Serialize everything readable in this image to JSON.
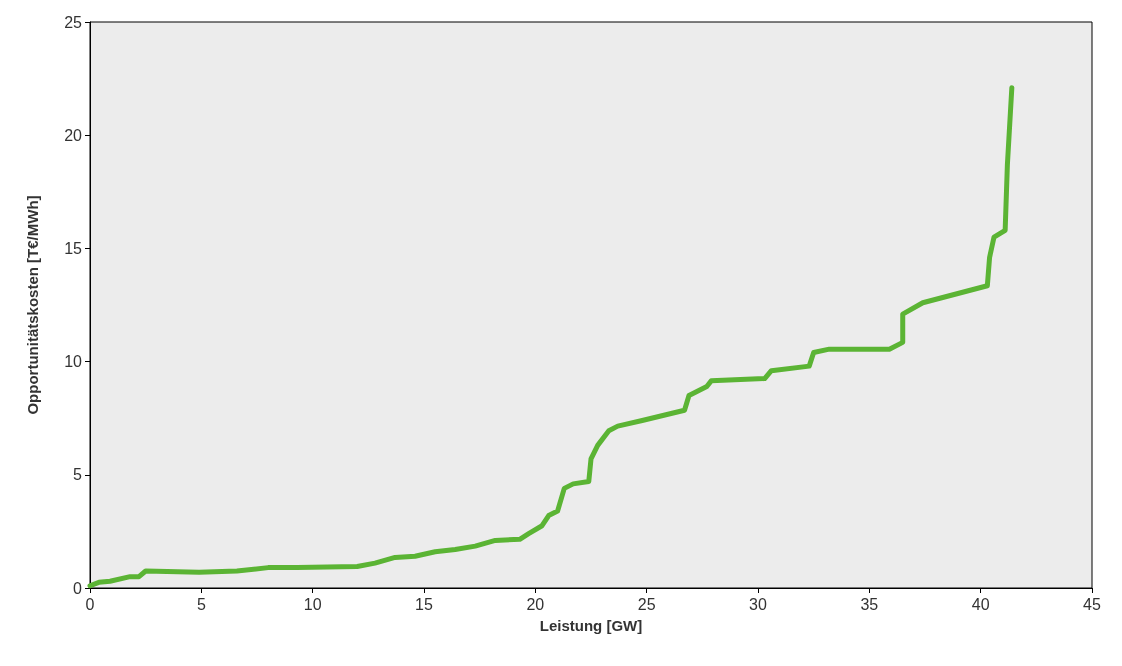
{
  "chart_data": {
    "type": "line",
    "xlabel": "Leistung [GW]",
    "ylabel": "Opportunitätskosten [T€/MWh]",
    "xlim": [
      0,
      45
    ],
    "xticks": [
      0,
      5,
      10,
      15,
      20,
      25,
      30,
      35,
      40,
      45
    ],
    "ylim": [
      0,
      25
    ],
    "yticks": [
      0,
      5,
      10,
      15,
      20,
      25
    ],
    "grid": false,
    "marker": "none",
    "line_style": "solid",
    "series": [
      {
        "color": "#5bb434",
        "x": [
          0,
          0.4,
          0.9,
          1.8,
          2.2,
          2.5,
          4.9,
          6.6,
          8,
          9.3,
          12,
          12.8,
          13.7,
          14.6,
          15.5,
          16.4,
          17.3,
          18.2,
          19.3,
          19.7,
          20.3,
          20.6,
          21,
          21.3,
          21.7,
          22.4,
          22.5,
          22.8,
          23.3,
          23.7,
          24.8,
          26.7,
          26.9,
          27.7,
          27.9,
          30.3,
          30.6,
          32.3,
          32.5,
          33.2,
          35.9,
          36.5,
          36.5,
          37.4,
          40.3,
          40.4,
          40.6,
          41.1,
          41.2,
          41.4
        ],
        "values": [
          0.1,
          0.25,
          0.3,
          0.5,
          0.5,
          0.75,
          0.7,
          0.75,
          0.9,
          0.9,
          0.95,
          1.1,
          1.35,
          1.4,
          1.6,
          1.7,
          1.85,
          2.1,
          2.15,
          2.4,
          2.75,
          3.2,
          3.4,
          4.4,
          4.6,
          4.7,
          5.7,
          6.3,
          6.95,
          7.15,
          7.4,
          7.85,
          8.5,
          8.9,
          9.15,
          9.25,
          9.6,
          9.8,
          10.4,
          10.55,
          10.55,
          10.85,
          12.1,
          12.6,
          13.35,
          14.6,
          15.5,
          15.8,
          18.7,
          22.1
        ]
      }
    ]
  }
}
